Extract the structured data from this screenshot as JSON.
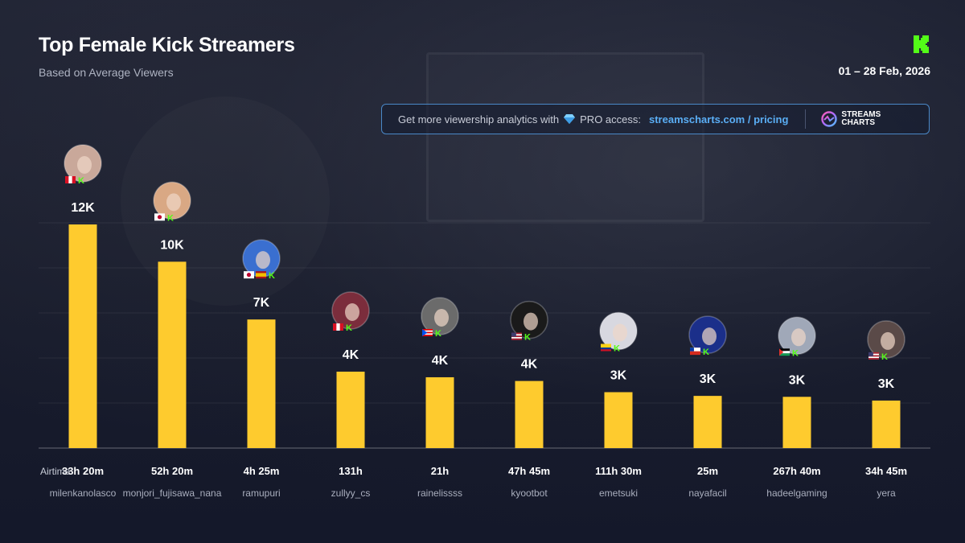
{
  "header": {
    "title": "Top Female Kick Streamers",
    "subtitle": "Based on Average Viewers",
    "date_range": "01 – 28 Feb, 2026"
  },
  "promo": {
    "text": "Get more viewership analytics with",
    "access_label": "PRO access:",
    "link": "streamscharts.com / pricing",
    "brand_line1": "STREAMS",
    "brand_line2": "CHARTS"
  },
  "colors": {
    "bar": "#fecb2e",
    "kick_green": "#53fc18",
    "link": "#5aaef5"
  },
  "airtime_prefix": "Airtime:",
  "chart_data": {
    "type": "bar",
    "title": "Top Female Kick Streamers",
    "subtitle": "Based on Average Viewers",
    "categories": [
      "milenkanolasco",
      "monjori_fujisawa_nana",
      "ramupuri",
      "zullyy_cs",
      "rainelissss",
      "kyootbot",
      "emetsuki",
      "nayafacil",
      "hadeelgaming",
      "yera"
    ],
    "values": [
      12000,
      10000,
      6900,
      4100,
      3800,
      3600,
      3000,
      2800,
      2750,
      2550
    ],
    "value_labels": [
      "12K",
      "10K",
      "7K",
      "4K",
      "4K",
      "4K",
      "3K",
      "3K",
      "3K",
      "3K"
    ],
    "airtime": [
      "33h 20m",
      "52h 20m",
      "4h 25m",
      "131h",
      "21h",
      "47h 45m",
      "111h 30m",
      "25m",
      "267h 40m",
      "34h 45m"
    ],
    "flags": [
      [
        "peru"
      ],
      [
        "japan"
      ],
      [
        "japan",
        "spain"
      ],
      [
        "peru"
      ],
      [
        "puerto-rico"
      ],
      [
        "usa"
      ],
      [
        "colombia"
      ],
      [
        "chile"
      ],
      [
        "palestine"
      ],
      [
        "usa"
      ]
    ],
    "ylim": [
      0,
      12000
    ],
    "grid": true,
    "legend": "none"
  }
}
